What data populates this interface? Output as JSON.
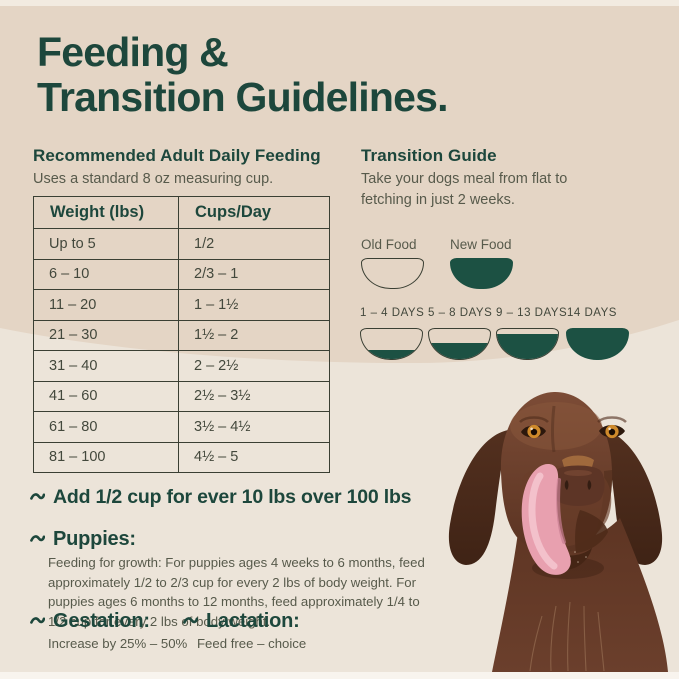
{
  "colors": {
    "green": "#1d473c",
    "bowl_green": "#1c5143",
    "bg_top": "#e4d5c5",
    "bg_bottom": "#ece4d9",
    "ink": "#43483c",
    "muted": "#575a4b",
    "border": "#3a3f33",
    "strip_top": "#f2ebe1",
    "strip_bottom": "#f8f4ee"
  },
  "title": {
    "lines": [
      "Feeding &",
      "Transition Guidelines."
    ]
  },
  "feeding": {
    "heading": "Recommended Adult Daily Feeding",
    "subheading": "Uses a standard 8 oz measuring cup.",
    "table": {
      "headers": [
        "Weight (lbs)",
        "Cups/Day"
      ],
      "rows": [
        [
          "Up to 5",
          "1/2"
        ],
        [
          "6 – 10",
          "2/3 – 1"
        ],
        [
          "11 – 20",
          "1 – 1½"
        ],
        [
          "21 – 30",
          "1½ – 2"
        ],
        [
          "31 – 40",
          "2 – 2½"
        ],
        [
          "41 – 60",
          "2½ – 3½"
        ],
        [
          "61 – 80",
          "3½ – 4½"
        ],
        [
          "81 – 100",
          "4½ – 5"
        ]
      ]
    }
  },
  "transition": {
    "heading": "Transition Guide",
    "subheading": "Take your dogs meal from flat to fetching in just 2 weeks.",
    "legend": [
      {
        "label": "Old Food",
        "fill": 0
      },
      {
        "label": "New Food",
        "fill": 100
      }
    ],
    "stages": [
      {
        "label": "1 – 4 DAYS",
        "fill": 30
      },
      {
        "label": "5 – 8 DAYS",
        "fill": 55
      },
      {
        "label": "9 – 13 DAYS",
        "fill": 85
      },
      {
        "label": "14 DAYS",
        "fill": 100
      }
    ]
  },
  "notes": {
    "over_100": "Add 1/2 cup for ever 10 lbs over 100 lbs",
    "puppies": {
      "heading": "Puppies:",
      "body": "Feeding for growth: For puppies ages 4 weeks to 6 months, feed approximately 1/2 to 2/3 cup for every 2 lbs of body weight. For puppies ages 6 months to 12 months, feed approximately 1/4 to 1/2 cup for every 2 lbs of body weight."
    },
    "gestation": {
      "heading": "Gestation:",
      "body": "Increase by 25% – 50%"
    },
    "lactation": {
      "heading": "Lactation:",
      "body": "Feed free – choice"
    }
  },
  "icons": {
    "bullet": "tilde-wave-icon",
    "bowl": "half-round-bowl-icon"
  }
}
